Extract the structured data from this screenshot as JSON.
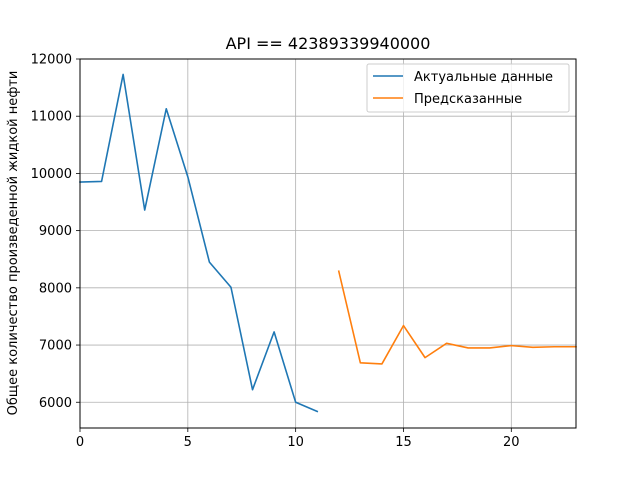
{
  "chart_data": {
    "type": "line",
    "title": "API == 42389339940000",
    "xlabel": "",
    "ylabel": "Общее количество произведенной жидкой нефти",
    "xlim": [
      0,
      23
    ],
    "ylim": [
      5550,
      12000
    ],
    "xticks": [
      0,
      5,
      10,
      15,
      20
    ],
    "yticks": [
      6000,
      7000,
      8000,
      9000,
      10000,
      11000,
      12000
    ],
    "grid": true,
    "legend_position": "top-right",
    "series": [
      {
        "name": "Актуальные данные",
        "color": "#1f77b4",
        "x": [
          0,
          1,
          2,
          3,
          4,
          5,
          6,
          7,
          8,
          9,
          10,
          11
        ],
        "y": [
          9850,
          9860,
          11730,
          9360,
          11130,
          9940,
          8450,
          8010,
          6220,
          7230,
          6000,
          5840
        ]
      },
      {
        "name": "Предсказанные",
        "color": "#ff7f0e",
        "x": [
          12,
          13,
          14,
          15,
          16,
          17,
          18,
          19,
          20,
          21,
          22,
          23
        ],
        "y": [
          8290,
          6690,
          6670,
          7340,
          6780,
          7030,
          6950,
          6950,
          6990,
          6960,
          6970,
          6970
        ]
      }
    ]
  }
}
